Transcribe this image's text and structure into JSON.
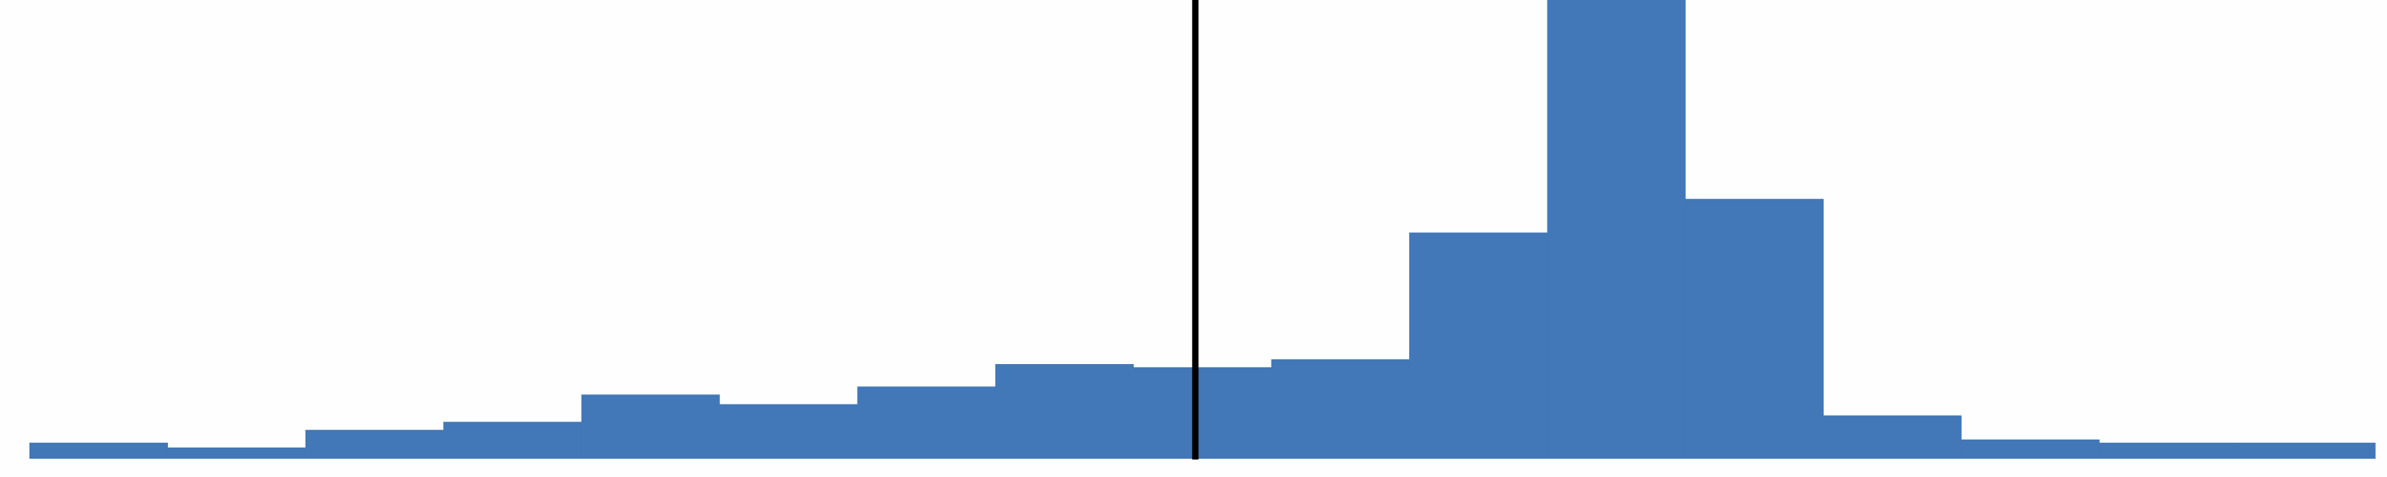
{
  "chart_data": {
    "type": "bar",
    "subtype": "histogram",
    "bins": 17,
    "values": [
      10,
      7,
      18,
      23,
      40,
      34,
      45,
      59,
      57,
      62,
      141,
      286,
      162,
      27,
      12,
      10,
      10
    ],
    "ylim": [
      0,
      286
    ],
    "reference_line": {
      "bin_position": 8.45,
      "color": "#000000"
    },
    "bar_color": "#4277b8",
    "background_color": "#fefefe",
    "grid": false,
    "legend": "none",
    "title": "",
    "xlabel": "",
    "ylabel": ""
  }
}
